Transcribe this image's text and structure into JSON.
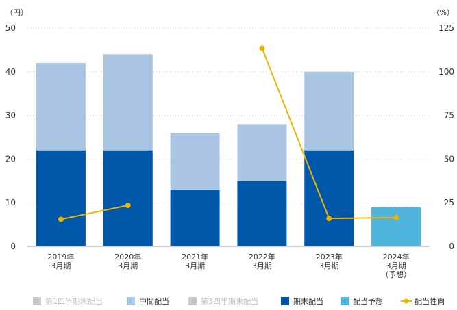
{
  "chart_data": {
    "type": "bar",
    "stacked": true,
    "categories": [
      [
        "2019年",
        "3月期"
      ],
      [
        "2020年",
        "3月期"
      ],
      [
        "2021年",
        "3月期"
      ],
      [
        "2022年",
        "3月期"
      ],
      [
        "2023年",
        "3月期"
      ],
      [
        "2024年",
        "3月期",
        "（予想）"
      ]
    ],
    "y_left": {
      "unit": "（円）",
      "min": 0,
      "max": 50,
      "ticks": [
        0,
        10,
        20,
        30,
        40,
        50
      ]
    },
    "y_right": {
      "unit": "（%）",
      "min": 0,
      "max": 125,
      "ticks": [
        0,
        25,
        50,
        75,
        100,
        125
      ]
    },
    "series": [
      {
        "name": "第1四半期末配当",
        "type": "bar",
        "axis": "left",
        "color": "#c8c8c8",
        "values": [
          0,
          0,
          0,
          0,
          0,
          0
        ],
        "muted": true
      },
      {
        "name": "中間配当",
        "type": "bar",
        "axis": "left",
        "color": "#a9c5e3",
        "values": [
          20,
          22,
          13,
          13,
          18,
          0
        ]
      },
      {
        "name": "第3四半期末配当",
        "type": "bar",
        "axis": "left",
        "color": "#c8c8c8",
        "values": [
          0,
          0,
          0,
          0,
          0,
          0
        ],
        "muted": true
      },
      {
        "name": "期末配当",
        "type": "bar",
        "axis": "left",
        "color": "#0058aa",
        "values": [
          22,
          22,
          13,
          15,
          22,
          0
        ]
      },
      {
        "name": "配当予想",
        "type": "bar",
        "axis": "left",
        "color": "#4fb5de",
        "values": [
          0,
          0,
          0,
          0,
          0,
          9
        ]
      },
      {
        "name": "配当性向",
        "type": "line",
        "axis": "right",
        "color": "#f0b400",
        "values": [
          15.5,
          23.5,
          null,
          113.5,
          16.0,
          16.5
        ]
      }
    ],
    "stack_order": [
      "期末配当",
      "中間配当",
      "配当予想"
    ],
    "legend_position": "bottom",
    "grid": true
  }
}
